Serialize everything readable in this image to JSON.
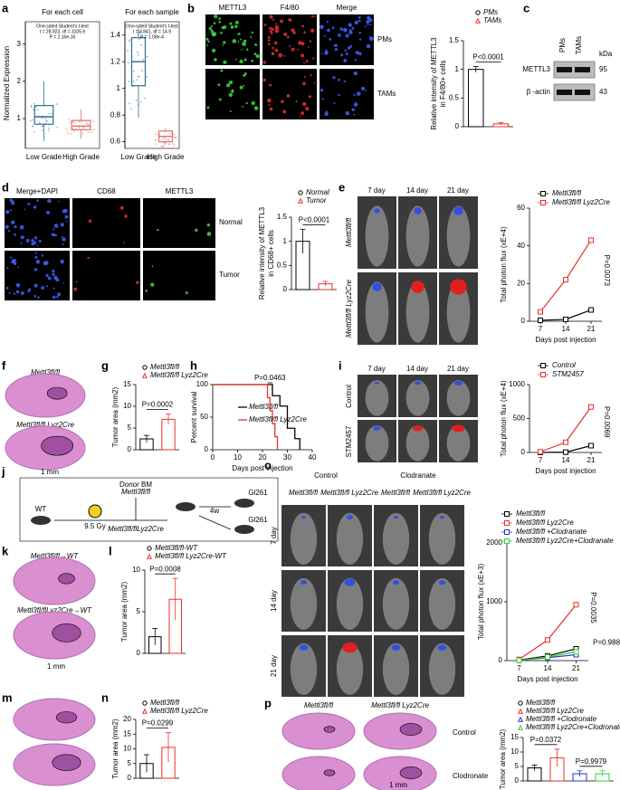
{
  "panels": {
    "a": {
      "label": "a",
      "ylabel": "Normalized Expression",
      "plots": [
        {
          "type": "box",
          "title": "For each cell",
          "test": [
            "One-sided Student's t-test",
            "t = 28.923, df = 3105.6",
            "P = 2.16e-16"
          ],
          "categories": [
            "Low Grade",
            "High Grade"
          ],
          "colors": [
            "#2a6f8f",
            "#e07070"
          ],
          "ylim": [
            0.2,
            3.6
          ],
          "yticks": [
            1,
            2,
            3
          ],
          "boxes": [
            [
              0.4,
              0.85,
              1.05,
              1.35,
              2.0
            ],
            [
              0.45,
              0.7,
              0.8,
              0.95,
              1.25
            ]
          ]
        },
        {
          "type": "box",
          "title": "For each sample",
          "test": [
            "One-sided Student's t-test",
            "t = 4.841, df = 14.9",
            "P = 1.08e-4"
          ],
          "categories": [
            "Low Grade",
            "High Grade"
          ],
          "colors": [
            "#2a6f8f",
            "#e07070"
          ],
          "ylim": [
            0.55,
            1.5
          ],
          "yticks": [
            0.6,
            0.8,
            1,
            1.2,
            1.4
          ],
          "boxes": [
            [
              0.78,
              1.02,
              1.2,
              1.38,
              1.45
            ],
            [
              0.58,
              0.6,
              0.64,
              0.68,
              0.7
            ]
          ]
        }
      ]
    },
    "b": {
      "label": "b",
      "columns": [
        "METTL3",
        "F4/80",
        "Merge"
      ],
      "rows": [
        "PMs",
        "TAMs"
      ],
      "chart": {
        "type": "bar",
        "ylabel": [
          "Relative intensity of METTL3",
          "in F4/80+ cells"
        ],
        "categories": [
          "PMs",
          "TAMs"
        ],
        "colors": [
          "#000000",
          "#e8302a"
        ],
        "values": [
          1.0,
          0.05
        ],
        "errors": [
          0.05,
          0.02
        ],
        "ylim": [
          0,
          1.5
        ],
        "yticks": [
          0,
          0.5,
          1,
          1.5
        ],
        "annotations": [
          "P<0.0001"
        ]
      }
    },
    "c": {
      "label": "c",
      "lanes": [
        "PMs",
        "TAMs"
      ],
      "bands": [
        "METTL3",
        "β -actin"
      ],
      "unit": "kDa",
      "markers": [
        95,
        43
      ]
    },
    "d": {
      "label": "d",
      "columns": [
        "Merge+DAPI",
        "CD68",
        "METTL3"
      ],
      "rows": [
        "Normal",
        "Tumor"
      ],
      "chart": {
        "type": "bar",
        "ylabel": [
          "Relative intensity of METTL3",
          "in CD68+ cells"
        ],
        "categories": [
          "Normal",
          "Tumor"
        ],
        "colors": [
          "#000000",
          "#e8302a"
        ],
        "values": [
          1.0,
          0.12
        ],
        "errors": [
          0.25,
          0.05
        ],
        "ylim": [
          0,
          1.5
        ],
        "yticks": [
          0,
          0.5,
          1,
          1.5
        ],
        "annotations": [
          "P<0.0001"
        ]
      }
    },
    "e": {
      "label": "e",
      "columns": [
        "7 day",
        "14 day",
        "21 day"
      ],
      "rows": [
        "Mettl3fl/fl",
        "Mettl3fl/fl Lyz2Cre"
      ],
      "chart": {
        "type": "line",
        "ylabel": "Total photon flux (xE+4)",
        "xlabel": "Days post injection",
        "x": [
          7,
          14,
          21
        ],
        "xlim": [
          4,
          24
        ],
        "xticks": [
          7,
          14,
          21
        ],
        "ylim": [
          0,
          60
        ],
        "yticks": [
          0,
          20,
          40,
          60
        ],
        "series": [
          {
            "name": "Mettl3fl/fl",
            "color": "#000000",
            "values": [
              0.5,
              1,
              6
            ]
          },
          {
            "name": "Mettl3fl/fl Lyz2Cre",
            "color": "#e8302a",
            "values": [
              5,
              22,
              43
            ]
          }
        ],
        "annotations": [
          "P=0.0073"
        ]
      }
    },
    "f": {
      "label": "f",
      "rows": [
        "Mettl3fl/fl",
        "Mettl3fl/fl Lyz2Cre"
      ],
      "scale": "1 mm"
    },
    "g": {
      "label": "g",
      "chart": {
        "type": "bar",
        "ylabel": [
          "Tumor area (mm2)"
        ],
        "categories": [
          "Mettl3fl/fl",
          "Mettl3fl/fl Lyz2Cre"
        ],
        "colors": [
          "#000000",
          "#e8302a"
        ],
        "values": [
          2.5,
          7
        ],
        "errors": [
          0.8,
          1.2
        ],
        "ylim": [
          0,
          15
        ],
        "yticks": [
          0,
          5,
          10,
          15
        ],
        "annotations": [
          "P=0.0002"
        ]
      }
    },
    "h": {
      "label": "h",
      "chart": {
        "type": "survival",
        "ylabel": "Percent survival",
        "xlabel": "Days post injection",
        "xlim": [
          0,
          40
        ],
        "xticks": [
          0,
          10,
          20,
          30,
          40
        ],
        "ylim": [
          0,
          100
        ],
        "yticks": [
          0,
          50,
          100
        ],
        "series": [
          {
            "name": "Mettl3fl/fl",
            "color": "#000000",
            "x": [
              0,
              24,
              27,
              30,
              33,
              35
            ],
            "values": [
              100,
              83,
              67,
              33,
              17,
              0
            ]
          },
          {
            "name": "Mettl3fl/fl Lyz2Cre",
            "color": "#e8302a",
            "x": [
              0,
              22,
              23,
              24,
              25,
              26
            ],
            "values": [
              100,
              80,
              60,
              40,
              20,
              0
            ]
          }
        ],
        "annotations": [
          "P=0.0463"
        ]
      }
    },
    "i": {
      "label": "i",
      "columns": [
        "7 day",
        "14 day",
        "21 day"
      ],
      "rows": [
        "Control",
        "STM2457"
      ],
      "chart": {
        "type": "line",
        "ylabel": "Total photon flux (xE+4)",
        "xlabel": "Days post injection",
        "x": [
          7,
          14,
          21
        ],
        "xlim": [
          4,
          24
        ],
        "xticks": [
          7,
          14,
          21
        ],
        "ylim": [
          0,
          1000
        ],
        "yticks": [
          0,
          500,
          1000
        ],
        "series": [
          {
            "name": "Control",
            "color": "#000000",
            "values": [
              0,
              5,
              100
            ]
          },
          {
            "name": "STM2457",
            "color": "#e8302a",
            "values": [
              10,
              150,
              670
            ]
          }
        ],
        "annotations": [
          "P=0.0069"
        ]
      }
    },
    "j": {
      "label": "j",
      "texts": [
        "WT",
        "Donor BM",
        "Mettl3fl/fl",
        "9.5 Gy",
        "Mettl3fl/flLyz2Cre",
        "4w",
        "Gl261",
        "Gl261"
      ]
    },
    "k": {
      "label": "k",
      "rows": [
        "Mettl3fl/fl→WT",
        "Mettl3fl/flLyz2Cre→WT"
      ],
      "scale": "1 mm"
    },
    "l": {
      "label": "l",
      "chart": {
        "type": "bar",
        "ylabel": [
          "Tumor area (mm2)"
        ],
        "categories": [
          "Mettl3fl/fl-WT",
          "Mettl3fl/fl Lyz2Cre-WT"
        ],
        "colors": [
          "#000000",
          "#e8302a"
        ],
        "values": [
          2,
          6.5
        ],
        "errors": [
          1,
          2.5
        ],
        "ylim": [
          0,
          10
        ],
        "yticks": [
          0,
          5,
          10
        ],
        "annotations": [
          "P=0.0008"
        ]
      }
    },
    "m": {
      "label": "m"
    },
    "n": {
      "label": "n",
      "chart": {
        "type": "bar",
        "ylabel": [
          "Tumor area (mm2)"
        ],
        "categories": [
          "Mettl3fl/fl",
          "Mettl3fl/fl Lyz2Cre"
        ],
        "colors": [
          "#000000",
          "#e8302a"
        ],
        "values": [
          5,
          10.5
        ],
        "errors": [
          3,
          5
        ],
        "ylim": [
          0,
          20
        ],
        "yticks": [
          0,
          5,
          10,
          15,
          20
        ],
        "annotations": [
          "P=0.0299"
        ]
      }
    },
    "o": {
      "label": "o",
      "groups": [
        "Control",
        "Clodranate"
      ],
      "columns": [
        "Mettl3fl/fl",
        "Mettl3fl/fl Lyz2Cre",
        "Mettl3fl/fl",
        "Mettl3fl/fl Lyz2Cre"
      ],
      "rows": [
        "7 day",
        "14 day",
        "21 day"
      ],
      "chart": {
        "type": "line",
        "ylabel": "Total photon flux (xE+3)",
        "xlabel": "Days post injection",
        "x": [
          7,
          14,
          21
        ],
        "xlim": [
          4,
          24
        ],
        "xticks": [
          7,
          14,
          21
        ],
        "ylim": [
          0,
          2000
        ],
        "yticks": [
          0,
          1000,
          2000
        ],
        "series": [
          {
            "name": "Mettl3fl/fl",
            "color": "#000000",
            "values": [
              10,
              80,
              200
            ]
          },
          {
            "name": "Mettl3fl/fl Lyz2Cre",
            "color": "#e8302a",
            "values": [
              20,
              350,
              950
            ]
          },
          {
            "name": "Mettl3fl/fl +Clodranate",
            "color": "#2233cc",
            "values": [
              5,
              50,
              100
            ]
          },
          {
            "name": "Mettl3fl/fl Lyz2Cre+Clodranate",
            "color": "#33cc33",
            "values": [
              5,
              60,
              150
            ]
          }
        ],
        "annotations": [
          "P=0.0035",
          "P=0.9880"
        ]
      }
    },
    "p": {
      "label": "p",
      "columns": [
        "Mettl3fl/fl",
        "Mettl3fl/fl Lyz2Cre"
      ],
      "rows": [
        "Control",
        "Clodronate"
      ],
      "scale": "1 mm",
      "chart": {
        "type": "bar",
        "ylabel": [
          "Tumor area (mm2)"
        ],
        "categories": [
          "Mettl3fl/fl",
          "Mettl3fl/fl Lyz2Cre",
          "Mettl3fl/fl +Clodronate",
          "Mettl3fl/fl Lyz2Cre+Clodronate"
        ],
        "colors": [
          "#000000",
          "#e8302a",
          "#2233cc",
          "#33cc33"
        ],
        "values": [
          4.5,
          8,
          2.5,
          2.5
        ],
        "errors": [
          1,
          3,
          1,
          1
        ],
        "ylim": [
          0,
          15
        ],
        "yticks": [
          0,
          5,
          10,
          15
        ],
        "annotations": [
          "P=0.0372",
          "P=0.9979"
        ]
      }
    }
  }
}
